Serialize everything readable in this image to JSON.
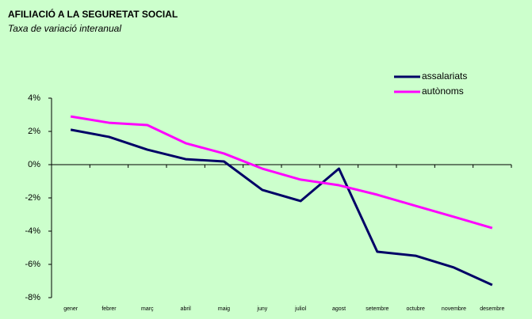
{
  "chart_data": {
    "type": "line",
    "title": "AFILIACIÓ A LA SEGURETAT SOCIAL",
    "subtitle": "Taxa de variació interanual",
    "categories": [
      "gener",
      "febrer",
      "març",
      "abril",
      "maig",
      "juny",
      "juliol",
      "agost",
      "setembre",
      "octubre",
      "novembre",
      "desembre"
    ],
    "series": [
      {
        "name": "assalariats",
        "color": "#000066",
        "values": [
          2.1,
          1.67,
          0.9,
          0.33,
          0.19,
          -1.52,
          -2.19,
          -0.24,
          -5.24,
          -5.48,
          -6.19,
          -7.24
        ]
      },
      {
        "name": "autònoms",
        "color": "#ff00ff",
        "values": [
          2.9,
          2.52,
          2.38,
          1.29,
          0.67,
          -0.24,
          -0.9,
          -1.24,
          -1.81,
          -2.48,
          -3.14,
          -3.81
        ]
      }
    ],
    "ylim": [
      -8,
      4
    ],
    "yticks": [
      {
        "value": -8,
        "label": "-8%"
      },
      {
        "value": -6,
        "label": "-6%"
      },
      {
        "value": -4,
        "label": "-4%"
      },
      {
        "value": -2,
        "label": "-2%"
      },
      {
        "value": 0,
        "label": "0%"
      },
      {
        "value": 2,
        "label": "2%"
      },
      {
        "value": 4,
        "label": "4%"
      }
    ]
  }
}
